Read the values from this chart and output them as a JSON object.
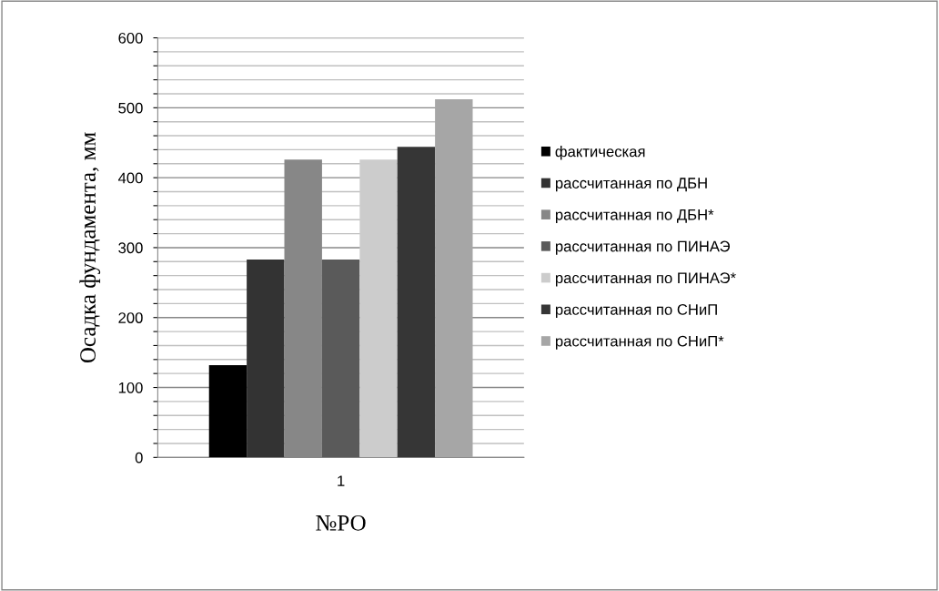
{
  "chart_data": {
    "type": "bar",
    "xlabel": "№РО",
    "ylabel": "Осадка фундамента, мм",
    "categories": [
      "1"
    ],
    "series": [
      {
        "name": "фактическая",
        "color": "#000000",
        "values": [
          132
        ]
      },
      {
        "name": "рассчитанная по ДБН",
        "color": "#333333",
        "values": [
          283
        ]
      },
      {
        "name": "рассчитанная по ДБН*",
        "color": "#878787",
        "values": [
          426
        ]
      },
      {
        "name": "рассчитанная по ПИНАЭ",
        "color": "#5a5a5a",
        "values": [
          283
        ]
      },
      {
        "name": "рассчитанная по ПИНАЭ*",
        "color": "#cccccc",
        "values": [
          426
        ]
      },
      {
        "name": "рассчитанная по СНиП",
        "color": "#363636",
        "values": [
          444
        ]
      },
      {
        "name": "рассчитанная по СНиП*",
        "color": "#a6a6a6",
        "values": [
          512
        ]
      }
    ],
    "ylim": [
      0,
      600
    ],
    "yticks": [
      0,
      {
        "value": 20,
        "label": null
      },
      {
        "value": 40,
        "label": null
      },
      {
        "value": 60,
        "label": null
      },
      {
        "value": 80,
        "label": null
      },
      100,
      {
        "value": 120,
        "label": null
      },
      {
        "value": 140,
        "label": null
      },
      {
        "value": 160,
        "label": null
      },
      {
        "value": 180,
        "label": null
      },
      200,
      {
        "value": 220,
        "label": null
      },
      {
        "value": 240,
        "label": null
      },
      {
        "value": 260,
        "label": null
      },
      {
        "value": 280,
        "label": null
      },
      300,
      {
        "value": 320,
        "label": null
      },
      {
        "value": 340,
        "label": null
      },
      {
        "value": 360,
        "label": null
      },
      {
        "value": 380,
        "label": null
      },
      400,
      {
        "value": 420,
        "label": null
      },
      {
        "value": 440,
        "label": null
      },
      {
        "value": 460,
        "label": null
      },
      {
        "value": 480,
        "label": null
      },
      500,
      {
        "value": 520,
        "label": null
      },
      {
        "value": 540,
        "label": null
      },
      {
        "value": 560,
        "label": null
      },
      {
        "value": 580,
        "label": null
      },
      600
    ],
    "grid": "y",
    "legend": "right"
  }
}
